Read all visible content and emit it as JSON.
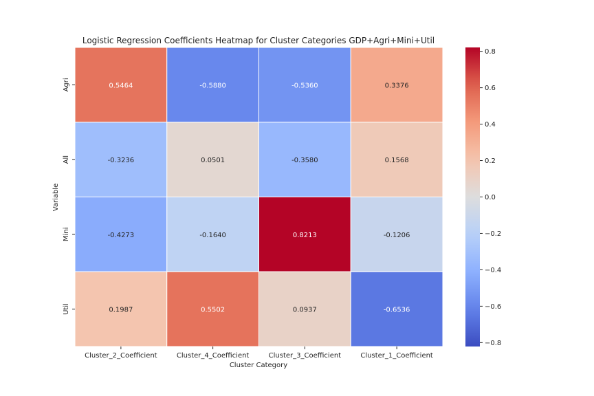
{
  "chart_data": {
    "type": "heatmap",
    "title": "Logistic Regression Coefficients Heatmap for Cluster Categories GDP+Agri+Mini+Util",
    "xlabel": "Cluster Category",
    "ylabel": "Variable",
    "x_categories": [
      "Cluster_2_Coefficient",
      "Cluster_4_Coefficient",
      "Cluster_3_Coefficient",
      "Cluster_1_Coefficient"
    ],
    "y_categories": [
      "Agri",
      "All",
      "Mini",
      "Util"
    ],
    "values": [
      [
        0.5464,
        -0.588,
        -0.536,
        0.3376
      ],
      [
        -0.3236,
        0.0501,
        -0.358,
        0.1568
      ],
      [
        -0.4273,
        -0.164,
        0.8213,
        -0.1206
      ],
      [
        0.1987,
        0.5502,
        0.0937,
        -0.6536
      ]
    ],
    "annotation_labels": [
      [
        "0.5464",
        "-0.5880",
        "-0.5360",
        "0.3376"
      ],
      [
        "-0.3236",
        "0.0501",
        "-0.3580",
        "0.1568"
      ],
      [
        "-0.4273",
        "-0.1640",
        "0.8213",
        "-0.1206"
      ],
      [
        "0.1987",
        "0.5502",
        "0.0937",
        "-0.6536"
      ]
    ],
    "colormap": "coolwarm",
    "vmin": -0.8213,
    "vmax": 0.8213,
    "colorbar_ticks": [
      0.8,
      0.6,
      0.4,
      0.2,
      0.0,
      -0.2,
      -0.4,
      -0.6,
      -0.8
    ],
    "colorbar_tick_labels": [
      "0.8",
      "0.6",
      "0.4",
      "0.2",
      "0.0",
      "−0.2",
      "−0.4",
      "−0.6",
      "−0.8"
    ],
    "legend": "colorbar-right"
  }
}
